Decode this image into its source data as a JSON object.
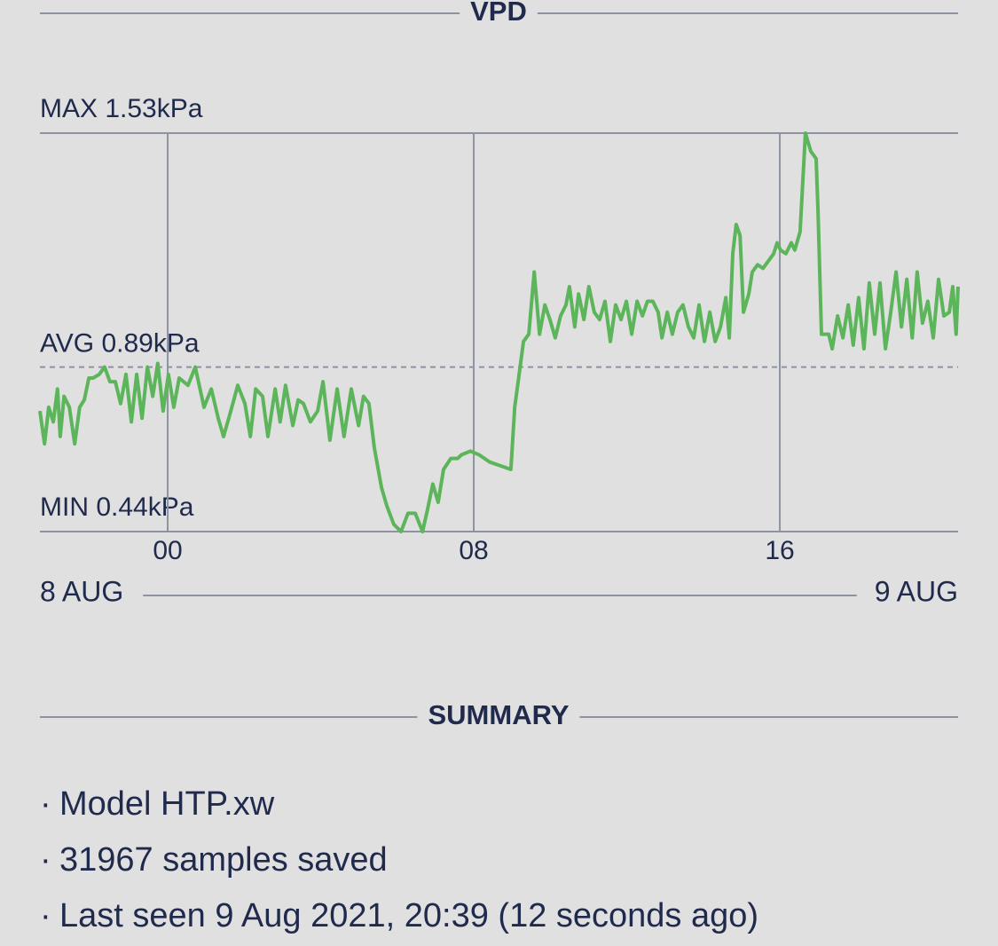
{
  "chart_data": {
    "type": "line",
    "title": "VPD",
    "x": [
      -3.34,
      -3.22,
      -3.11,
      -2.99,
      -2.88,
      -2.81,
      -2.71,
      -2.57,
      -2.43,
      -2.3,
      -2.18,
      -2.06,
      -1.95,
      -1.79,
      -1.65,
      -1.51,
      -1.37,
      -1.23,
      -1.09,
      -0.95,
      -0.81,
      -0.67,
      -0.53,
      -0.39,
      -0.26,
      -0.12,
      0.02,
      0.16,
      0.3,
      0.53,
      0.72,
      0.95,
      1.14,
      1.32,
      1.46,
      1.65,
      1.83,
      2.02,
      2.16,
      2.3,
      2.48,
      2.62,
      2.81,
      2.94,
      3.08,
      3.27,
      3.41,
      3.55,
      3.73,
      3.92,
      4.06,
      4.24,
      4.43,
      4.61,
      4.8,
      4.99,
      5.12,
      5.26,
      5.4,
      5.59,
      5.73,
      5.91,
      6.1,
      6.28,
      6.47,
      6.66,
      6.79,
      6.93,
      7.07,
      7.21,
      7.4,
      7.58,
      7.68,
      7.91,
      8.14,
      8.42,
      8.7,
      8.97,
      9.07,
      9.16,
      9.3,
      9.44,
      9.58,
      9.72,
      9.86,
      9.99,
      10.13,
      10.27,
      10.41,
      10.5,
      10.64,
      10.74,
      10.88,
      11.01,
      11.15,
      11.29,
      11.43,
      11.57,
      11.71,
      11.85,
      11.99,
      12.13,
      12.27,
      12.41,
      12.54,
      12.68,
      12.82,
      12.92,
      13.06,
      13.19,
      13.33,
      13.47,
      13.61,
      13.75,
      13.89,
      14.03,
      14.17,
      14.31,
      14.45,
      14.59,
      14.68,
      14.77,
      14.86,
      14.96,
      15.05,
      15.19,
      15.28,
      15.42,
      15.56,
      15.7,
      15.84,
      15.93,
      16.02,
      16.16,
      16.3,
      16.39,
      16.53,
      16.67,
      16.81,
      16.95,
      17.0,
      17.09,
      17.28,
      17.37,
      17.51,
      17.65,
      17.79,
      17.92,
      18.06,
      18.2,
      18.34,
      18.48,
      18.62,
      18.76,
      18.9,
      19.04,
      19.18,
      19.32,
      19.46,
      19.59,
      19.73,
      19.87,
      20.01,
      20.15,
      20.29,
      20.43,
      20.52,
      20.61,
      20.66
    ],
    "series": [
      {
        "color": "#5cb55a",
        "values": [
          0.77,
          0.68,
          0.78,
          0.74,
          0.83,
          0.7,
          0.81,
          0.78,
          0.68,
          0.78,
          0.8,
          0.86,
          0.86,
          0.87,
          0.89,
          0.85,
          0.85,
          0.79,
          0.87,
          0.74,
          0.87,
          0.75,
          0.89,
          0.81,
          0.9,
          0.77,
          0.87,
          0.78,
          0.86,
          0.84,
          0.89,
          0.78,
          0.83,
          0.75,
          0.7,
          0.77,
          0.84,
          0.79,
          0.7,
          0.83,
          0.81,
          0.7,
          0.83,
          0.74,
          0.84,
          0.73,
          0.8,
          0.79,
          0.74,
          0.77,
          0.85,
          0.69,
          0.83,
          0.7,
          0.83,
          0.73,
          0.81,
          0.79,
          0.67,
          0.56,
          0.51,
          0.46,
          0.44,
          0.49,
          0.49,
          0.44,
          0.5,
          0.57,
          0.52,
          0.61,
          0.64,
          0.64,
          0.65,
          0.66,
          0.65,
          0.63,
          0.62,
          0.61,
          0.78,
          0.85,
          0.96,
          0.98,
          1.15,
          0.98,
          1.06,
          1.02,
          0.97,
          1.03,
          1.06,
          1.11,
          1.0,
          1.09,
          1.02,
          1.11,
          1.04,
          1.02,
          1.07,
          0.96,
          1.06,
          1.02,
          1.07,
          0.98,
          1.07,
          1.03,
          1.07,
          1.07,
          1.04,
          0.97,
          1.04,
          0.98,
          1.04,
          1.06,
          1.0,
          0.97,
          1.06,
          0.96,
          1.04,
          0.96,
          1.0,
          1.08,
          0.97,
          1.2,
          1.28,
          1.25,
          1.04,
          1.09,
          1.15,
          1.17,
          1.16,
          1.18,
          1.2,
          1.23,
          1.21,
          1.2,
          1.23,
          1.21,
          1.26,
          1.53,
          1.48,
          1.46,
          1.31,
          0.98,
          0.98,
          0.94,
          1.03,
          0.97,
          1.06,
          0.95,
          1.08,
          0.94,
          1.12,
          0.98,
          1.12,
          0.94,
          1.04,
          1.15,
          1.0,
          1.13,
          0.97,
          1.15,
          1.01,
          1.07,
          0.97,
          1.13,
          1.03,
          1.04,
          1.11,
          0.98,
          1.11
        ]
      }
    ],
    "xlim": [
      -3.34,
      20.66
    ],
    "xticks": [
      {
        "value": 0,
        "label": "00"
      },
      {
        "value": 8,
        "label": "08"
      },
      {
        "value": 16,
        "label": "16"
      }
    ],
    "ylim": [
      0.44,
      1.53
    ],
    "yticks": [
      {
        "value": 1.53,
        "label": "MAX 1.53kPa"
      },
      {
        "value": 0.44,
        "label": "MIN 0.44kPa"
      }
    ],
    "average": {
      "value": 0.89,
      "label": "AVG 0.89kPa"
    },
    "date_range": [
      "8 AUG",
      "9 AUG"
    ],
    "grid": true
  },
  "summary": {
    "title": "SUMMARY",
    "items": [
      "Model HTP.xw",
      "31967 samples saved",
      "Last seen 9 Aug 2021, 20:39 (12 seconds ago)"
    ]
  }
}
